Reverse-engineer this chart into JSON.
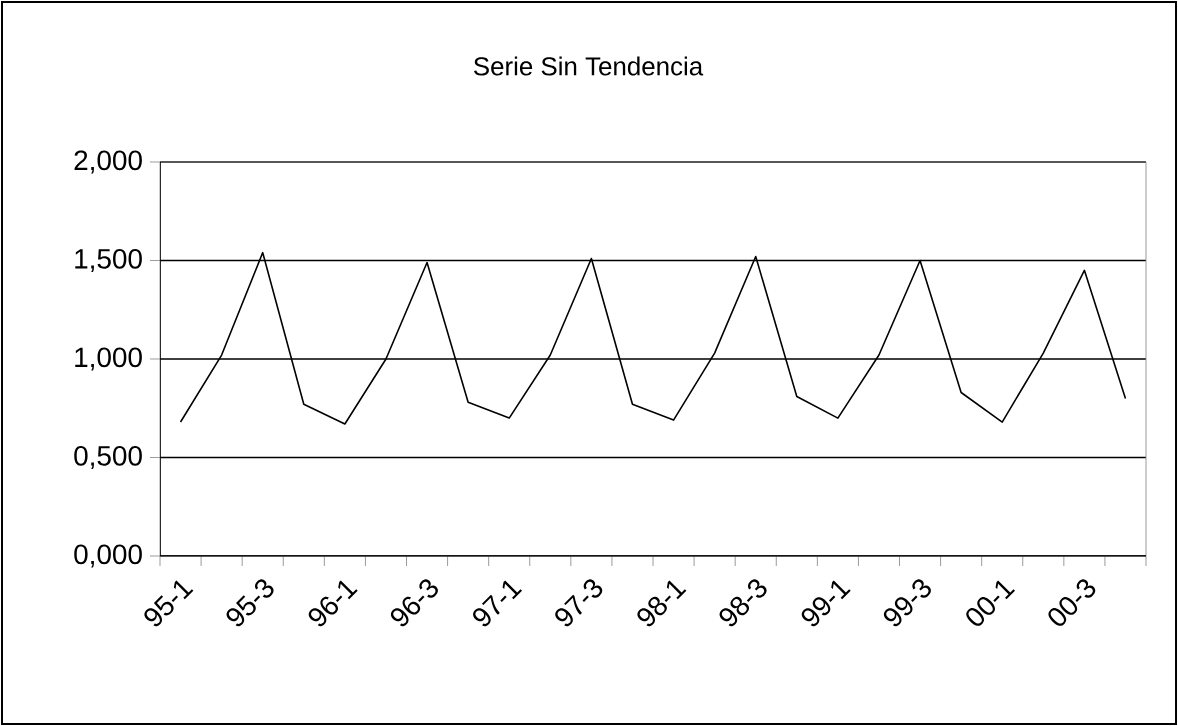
{
  "chart_data": {
    "type": "line",
    "title": "Serie Sin Tendencia",
    "categories": [
      "95-1",
      null,
      "95-3",
      null,
      "96-1",
      null,
      "96-3",
      null,
      "97-1",
      null,
      "97-3",
      null,
      "98-1",
      null,
      "98-3",
      null,
      "99-1",
      null,
      "99-3",
      null,
      "00-1",
      null,
      "00-3",
      null
    ],
    "series": [
      {
        "color": "#000000",
        "values": [
          0.68,
          1.02,
          1.54,
          0.77,
          0.67,
          1.0,
          1.49,
          0.78,
          0.7,
          1.02,
          1.51,
          0.77,
          0.69,
          1.03,
          1.52,
          0.81,
          0.7,
          1.02,
          1.5,
          0.83,
          0.68,
          1.03,
          1.45,
          0.8
        ]
      }
    ],
    "ylim": [
      0,
      2
    ],
    "yticks": [
      {
        "value": 0,
        "label": "0,000"
      },
      {
        "value": 0.5,
        "label": "0,500"
      },
      {
        "value": 1,
        "label": "1,000"
      },
      {
        "value": 1.5,
        "label": "1,500"
      },
      {
        "value": 2,
        "label": "2,000"
      }
    ],
    "grid": "y",
    "marker": "none",
    "line_style": "solid"
  }
}
